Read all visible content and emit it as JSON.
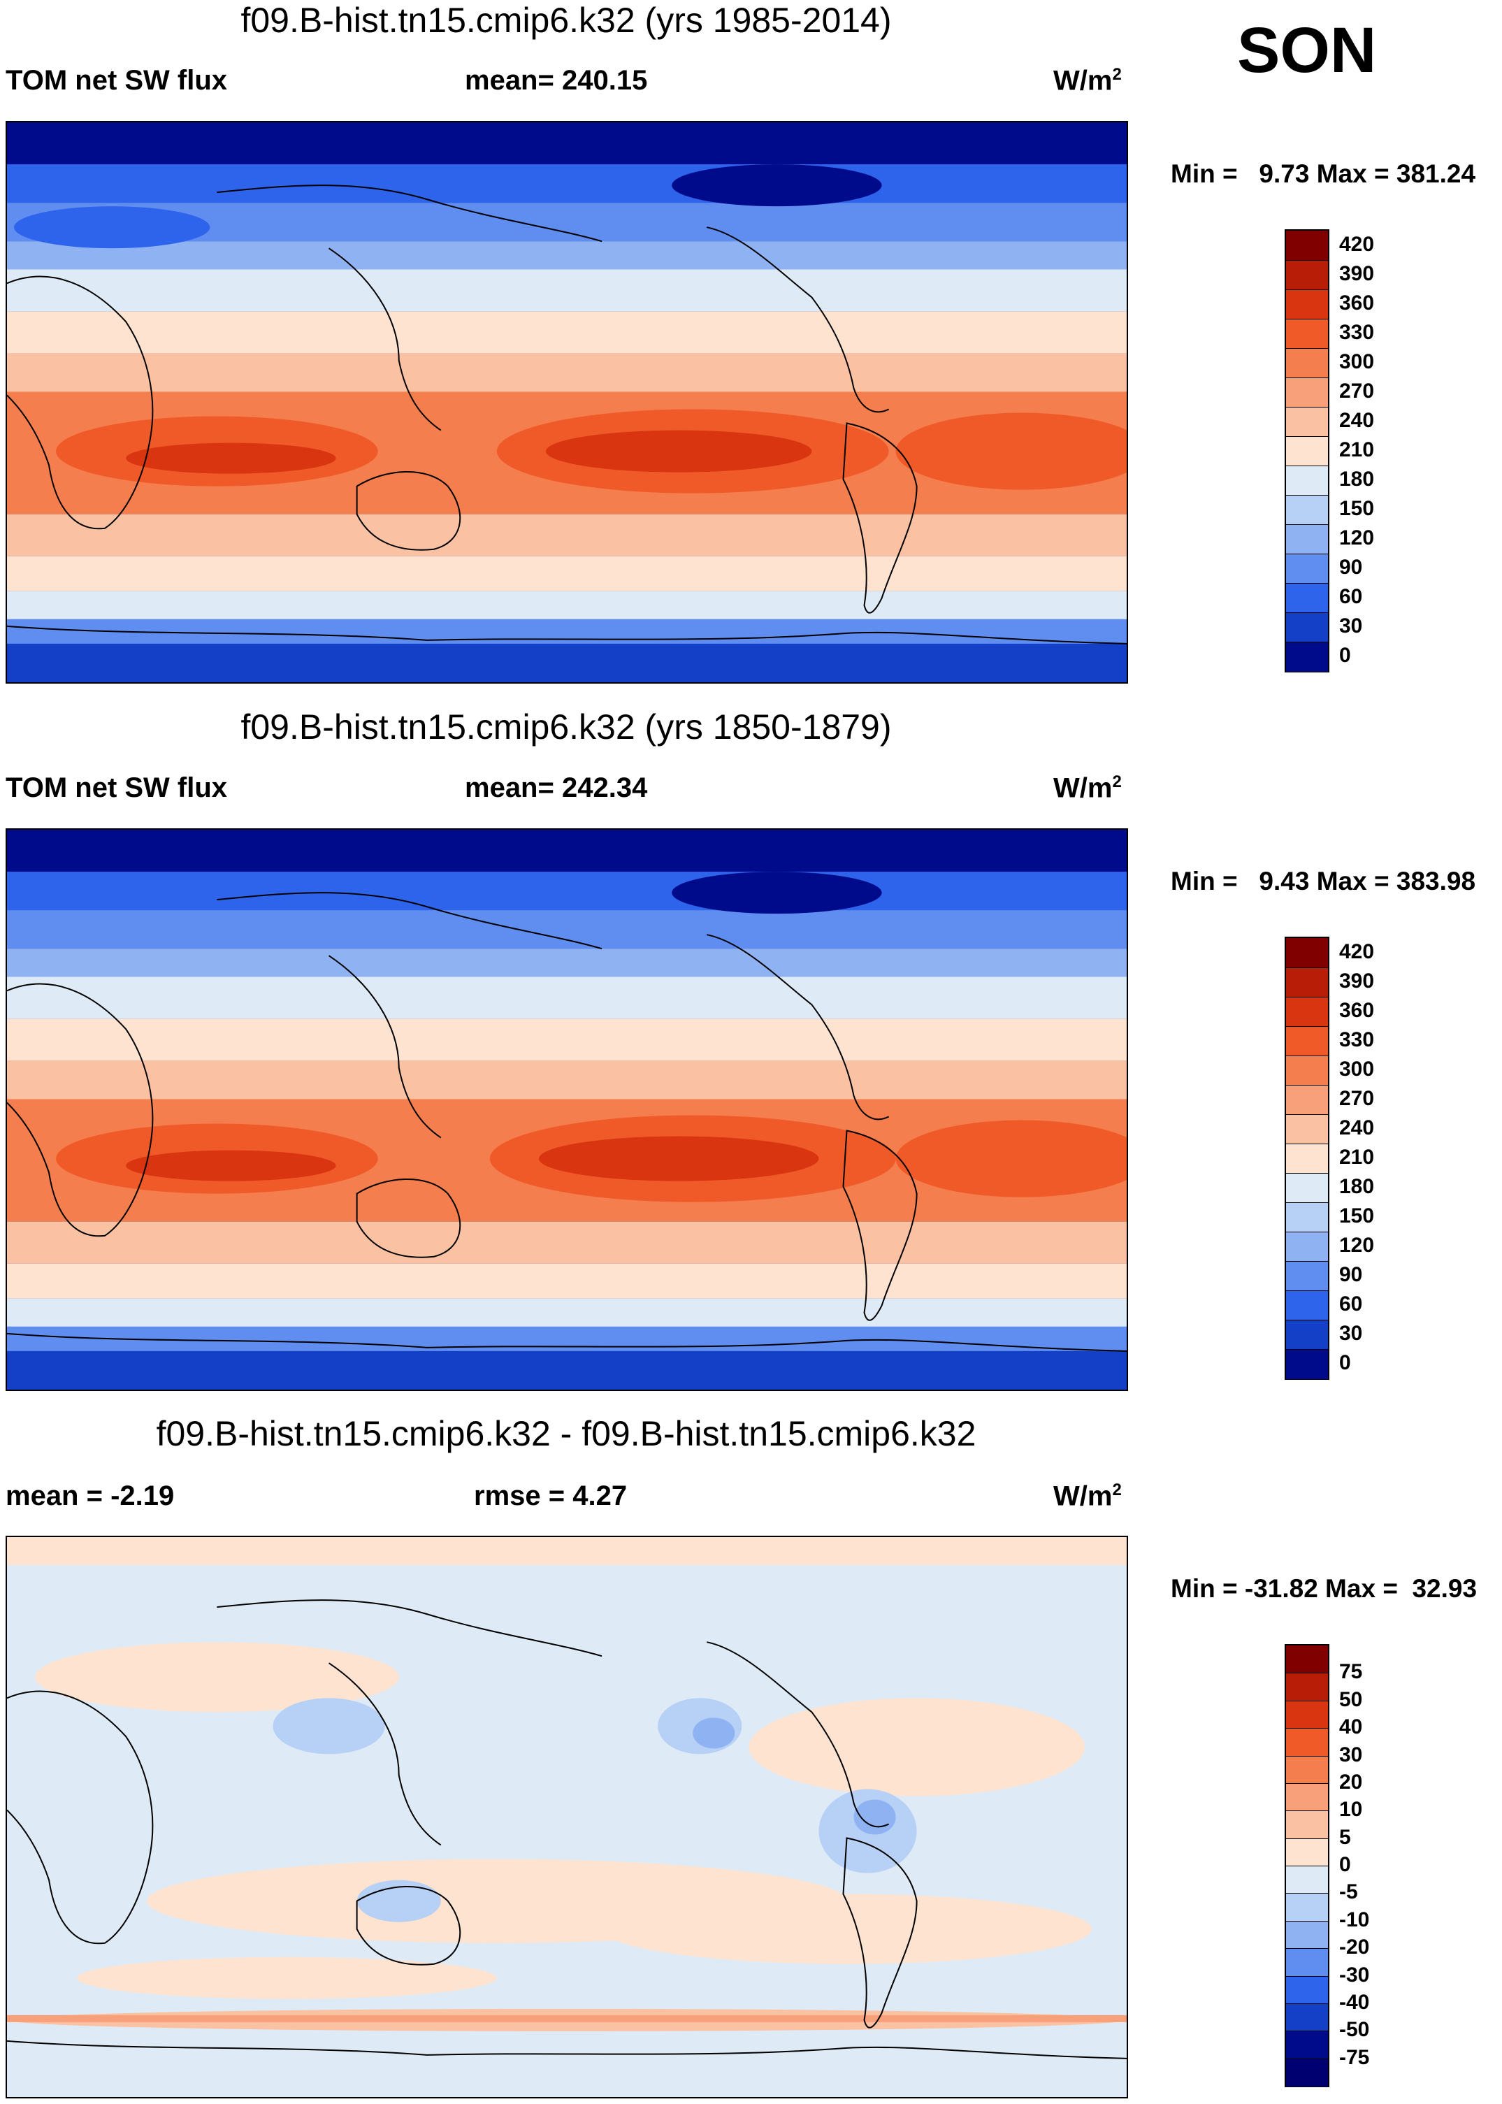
{
  "season": "SON",
  "panels": [
    {
      "title": "f09.B-hist.tn15.cmip6.k32 (yrs 1985-2014)",
      "left_label": "TOM net SW flux",
      "mid_label": "mean= 240.15",
      "units": "W/m",
      "units_sup": "2",
      "minmax": "Min =   9.73 Max = 381.24",
      "colorbar_labels": [
        "420",
        "390",
        "360",
        "330",
        "300",
        "270",
        "240",
        "210",
        "180",
        "150",
        "120",
        "90",
        "60",
        "30",
        "0"
      ]
    },
    {
      "title": "f09.B-hist.tn15.cmip6.k32 (yrs 1850-1879)",
      "left_label": "TOM net SW flux",
      "mid_label": "mean= 242.34",
      "units": "W/m",
      "units_sup": "2",
      "minmax": "Min =   9.43 Max = 383.98",
      "colorbar_labels": [
        "420",
        "390",
        "360",
        "330",
        "300",
        "270",
        "240",
        "210",
        "180",
        "150",
        "120",
        "90",
        "60",
        "30",
        "0"
      ]
    },
    {
      "title": "f09.B-hist.tn15.cmip6.k32 - f09.B-hist.tn15.cmip6.k32",
      "left_label": "mean =  -2.19",
      "mid_label": "rmse =    4.27",
      "units": "W/m",
      "units_sup": "2",
      "minmax": "Min = -31.82 Max =  32.93",
      "colorbar_labels": [
        "75",
        "50",
        "40",
        "30",
        "20",
        "10",
        "5",
        "0",
        "-5",
        "-10",
        "-20",
        "-30",
        "-40",
        "-50",
        "-75"
      ]
    }
  ],
  "colors": {
    "abs_scale": [
      "#800000",
      "#b81d07",
      "#d83510",
      "#f05a28",
      "#f47e4d",
      "#f7a07a",
      "#fac2a3",
      "#fde3d0",
      "#deebf7",
      "#b7d0f5",
      "#8fb2f2",
      "#5f8df0",
      "#2e64ec",
      "#1440c8",
      "#000b8c"
    ],
    "diff_scale": [
      "#800000",
      "#b81d07",
      "#d83510",
      "#f05a28",
      "#f47e4d",
      "#f7a07a",
      "#fac2a3",
      "#fde3d0",
      "#deebf7",
      "#b7d0f5",
      "#8fb2f2",
      "#5f8df0",
      "#2e64ec",
      "#1440c8",
      "#000b8c",
      "#000070"
    ]
  }
}
